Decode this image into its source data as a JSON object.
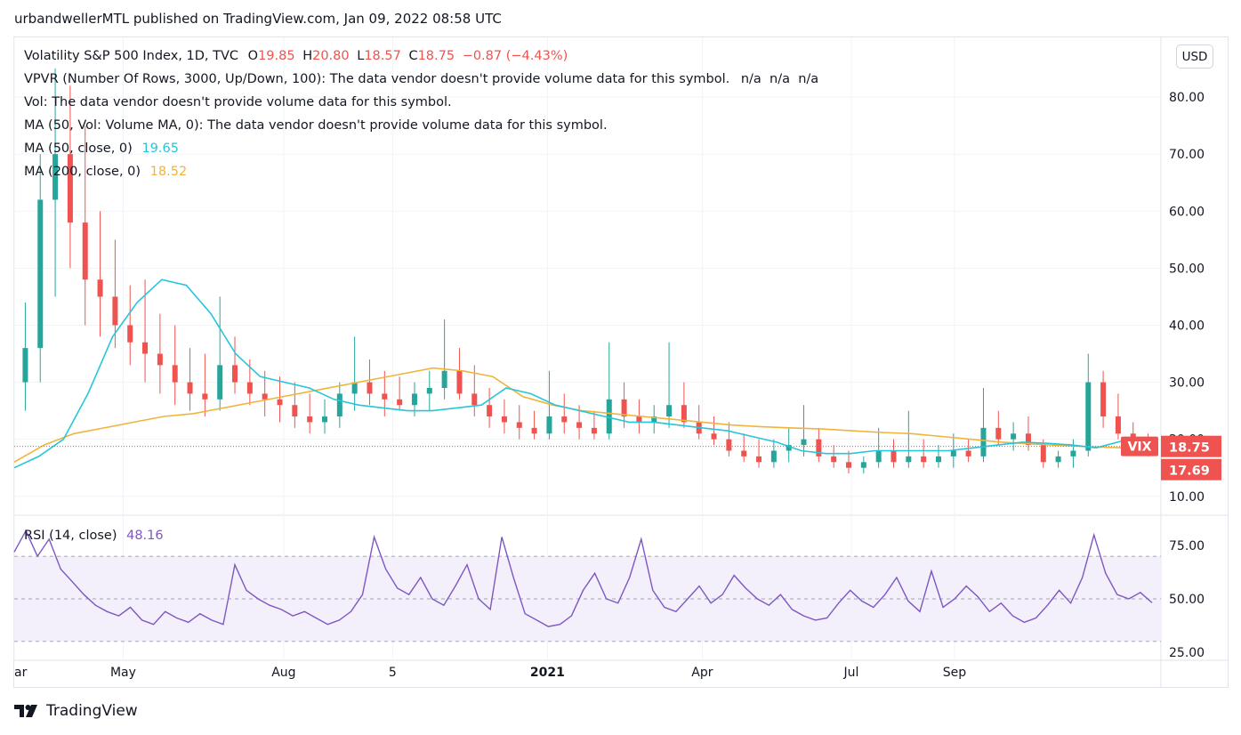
{
  "published": "urbandwellerMTL published on TradingView.com, Jan 09, 2022 08:58 UTC",
  "legend": {
    "symbol": "Volatility S&P 500 Index, 1D, TVC",
    "o_label": "O",
    "o_value": "19.85",
    "h_label": "H",
    "h_value": "20.80",
    "l_label": "L",
    "l_value": "18.57",
    "c_label": "C",
    "c_value": "18.75",
    "change": "−0.87 (−4.43%)",
    "vpvr": "VPVR (Number Of Rows, 3000, Up/Down, 100): The data vendor doesn't provide volume data for this symbol.",
    "vpvr_na": "n/a  n/a  n/a",
    "vol": "Vol: The data vendor doesn't provide volume data for this symbol.",
    "vol_ma": "MA (50, Vol: Volume MA, 0): The data vendor doesn't provide volume data for this symbol.",
    "ma50_label": "MA (50, close, 0)",
    "ma50_value": "19.65",
    "ma200_label": "MA (200, close, 0)",
    "ma200_value": "18.52"
  },
  "currency_button": "USD",
  "rsi_legend": {
    "label": "RSI (14, close)",
    "value": "48.16"
  },
  "price_badges": {
    "symbol": "VIX",
    "last": "18.75",
    "other": "17.69"
  },
  "brand": "TradingView",
  "colors": {
    "up": "#26a69a",
    "down": "#ef5350",
    "ma50": "#26c6da",
    "ma200": "#f0b43c",
    "rsi": "#7e57c2",
    "rsi_band": "#f3effb",
    "badge": "#ef5350"
  },
  "chart_data": [
    {
      "type": "candlestick",
      "symbol": "VIX",
      "y_ticks": [
        "10.00",
        "20.00",
        "30.00",
        "40.00",
        "50.00",
        "60.00",
        "70.00",
        "80.00"
      ],
      "ylim": [
        7,
        90
      ],
      "x_ticks": [
        "ar",
        "May",
        "Aug",
        "5",
        "2021",
        "Apr",
        "Jul",
        "Sep"
      ],
      "ma50": [
        15,
        17,
        20,
        28,
        38,
        44,
        48,
        47,
        42,
        35,
        31,
        30,
        29,
        27,
        26,
        25.5,
        25,
        25,
        25.5,
        26,
        29,
        28,
        26,
        25,
        24,
        23,
        23,
        22.5,
        22,
        21.5,
        20.5,
        19.5,
        18,
        17.5,
        17.5,
        18,
        18,
        18,
        18,
        18.5,
        19,
        19.5,
        19.3,
        19,
        18.5,
        19.65
      ],
      "ma200": [
        16,
        19,
        21,
        22,
        23,
        24,
        24.5,
        25.5,
        26.5,
        27.5,
        28.5,
        29.5,
        30.5,
        31.5,
        32.5,
        32,
        31,
        27.5,
        26,
        25,
        24.5,
        24,
        23.5,
        23,
        22.5,
        22.2,
        22,
        21.8,
        21.5,
        21.2,
        21,
        20.5,
        20,
        19.5,
        19.2,
        18.9,
        18.7,
        18.52
      ],
      "ohlc": [
        [
          30,
          44,
          25,
          36
        ],
        [
          36,
          70,
          30,
          62
        ],
        [
          62,
          85,
          45,
          70
        ],
        [
          70,
          82,
          50,
          58
        ],
        [
          58,
          75,
          40,
          48
        ],
        [
          48,
          60,
          38,
          45
        ],
        [
          45,
          55,
          36,
          40
        ],
        [
          40,
          47,
          33,
          37
        ],
        [
          37,
          48,
          30,
          35
        ],
        [
          35,
          42,
          28,
          33
        ],
        [
          33,
          40,
          26,
          30
        ],
        [
          30,
          36,
          25,
          28
        ],
        [
          28,
          35,
          24,
          27
        ],
        [
          27,
          45,
          25,
          33
        ],
        [
          33,
          38,
          28,
          30
        ],
        [
          30,
          34,
          26,
          28
        ],
        [
          28,
          32,
          24,
          27
        ],
        [
          27,
          31,
          23,
          26
        ],
        [
          26,
          30,
          22,
          24
        ],
        [
          24,
          28,
          21,
          23
        ],
        [
          23,
          27,
          21,
          24
        ],
        [
          24,
          30,
          22,
          28
        ],
        [
          28,
          38,
          25,
          30
        ],
        [
          30,
          34,
          26,
          28
        ],
        [
          28,
          32,
          24,
          27
        ],
        [
          27,
          31,
          25,
          26
        ],
        [
          26,
          30,
          24,
          28
        ],
        [
          28,
          32,
          25,
          29
        ],
        [
          29,
          41,
          27,
          32
        ],
        [
          32,
          36,
          27,
          28
        ],
        [
          28,
          33,
          24,
          26
        ],
        [
          26,
          29,
          22,
          24
        ],
        [
          24,
          27,
          21,
          23
        ],
        [
          23,
          26,
          20,
          22
        ],
        [
          22,
          25,
          20,
          21
        ],
        [
          21,
          32,
          20,
          24
        ],
        [
          24,
          28,
          21,
          23
        ],
        [
          23,
          26,
          20,
          22
        ],
        [
          22,
          25,
          20,
          21
        ],
        [
          21,
          37,
          20,
          27
        ],
        [
          27,
          30,
          22,
          24
        ],
        [
          24,
          27,
          21,
          23
        ],
        [
          23,
          26,
          21,
          24
        ],
        [
          24,
          37,
          22,
          26
        ],
        [
          26,
          30,
          22,
          23
        ],
        [
          23,
          26,
          20,
          21
        ],
        [
          21,
          24,
          19,
          20
        ],
        [
          20,
          23,
          17,
          18
        ],
        [
          18,
          21,
          16,
          17
        ],
        [
          17,
          20,
          15,
          16
        ],
        [
          16,
          20,
          15,
          18
        ],
        [
          18,
          22,
          16,
          19
        ],
        [
          19,
          26,
          17,
          20
        ],
        [
          20,
          22,
          16,
          17
        ],
        [
          17,
          19,
          15,
          16
        ],
        [
          16,
          18,
          14,
          15
        ],
        [
          15,
          17,
          14,
          16
        ],
        [
          16,
          22,
          15,
          18
        ],
        [
          18,
          20,
          15,
          16
        ],
        [
          16,
          25,
          15,
          17
        ],
        [
          17,
          20,
          15,
          16
        ],
        [
          16,
          19,
          15,
          17
        ],
        [
          17,
          21,
          15,
          18
        ],
        [
          18,
          20,
          16,
          17
        ],
        [
          17,
          29,
          16,
          22
        ],
        [
          22,
          25,
          19,
          20
        ],
        [
          20,
          23,
          18,
          21
        ],
        [
          21,
          24,
          18,
          19
        ],
        [
          19,
          20,
          15,
          16
        ],
        [
          16,
          18,
          15,
          17
        ],
        [
          17,
          20,
          15,
          18
        ],
        [
          18,
          35,
          17,
          30
        ],
        [
          30,
          32,
          22,
          24
        ],
        [
          24,
          28,
          20,
          21
        ],
        [
          21,
          23,
          18,
          19
        ],
        [
          19,
          21,
          17,
          18.75
        ]
      ]
    },
    {
      "type": "line",
      "name": "RSI (14, close)",
      "y_ticks": [
        "25.00",
        "50.00",
        "75.00"
      ],
      "ylim": [
        22,
        88
      ],
      "band": [
        30,
        70
      ],
      "midline": 50,
      "values": [
        72,
        82,
        70,
        78,
        64,
        58,
        52,
        47,
        44,
        42,
        46,
        40,
        38,
        44,
        41,
        39,
        43,
        40,
        38,
        66,
        54,
        50,
        47,
        45,
        42,
        44,
        41,
        38,
        40,
        44,
        52,
        79,
        64,
        55,
        52,
        60,
        50,
        47,
        56,
        66,
        50,
        45,
        79,
        60,
        43,
        40,
        37,
        38,
        42,
        54,
        62,
        50,
        48,
        60,
        78,
        54,
        46,
        44,
        50,
        56,
        48,
        52,
        61,
        55,
        50,
        47,
        52,
        45,
        42,
        40,
        41,
        48,
        54,
        49,
        46,
        52,
        60,
        49,
        44,
        63,
        46,
        50,
        56,
        51,
        44,
        48,
        42,
        39,
        41,
        47,
        54,
        48,
        60,
        80,
        62,
        52,
        50,
        53,
        48.16
      ]
    }
  ]
}
